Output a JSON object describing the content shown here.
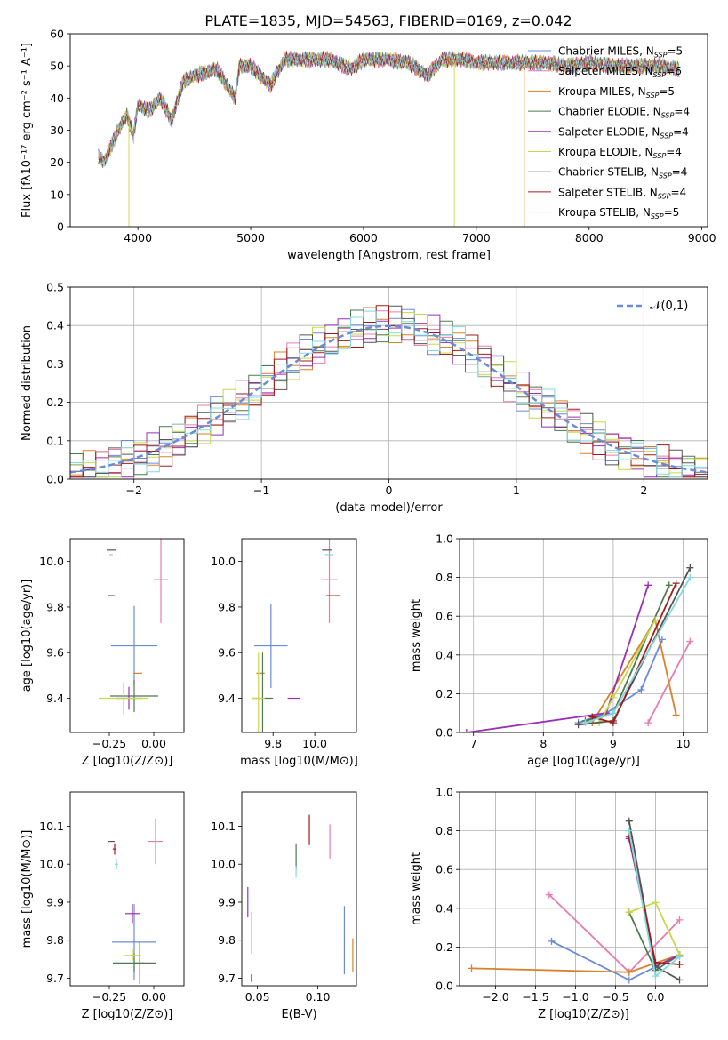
{
  "title": "PLATE=1835, MJD=54563, FIBERID=0169, z=0.042",
  "colors": [
    "#6b8ad9",
    "#e67cb2",
    "#d9822b",
    "#4e7a4e",
    "#9b2fb5",
    "#c9d84a",
    "#555555",
    "#a01c1c",
    "#84d8e0"
  ],
  "chart_data": [
    {
      "id": "spectrum",
      "type": "line",
      "title": "PLATE=1835, MJD=54563, FIBERID=0169, z=0.042",
      "xlabel": "wavelength [Angstrom, rest frame]",
      "ylabel": "Flux [fλ10⁻¹⁷ erg cm⁻² s⁻¹ A⁻¹]",
      "xlim": [
        3400,
        9050
      ],
      "ylim": [
        0,
        60
      ],
      "xticks": [
        "4000",
        "5000",
        "6000",
        "7000",
        "8000",
        "9000"
      ],
      "yticks": [
        "0",
        "10",
        "20",
        "30",
        "40",
        "50",
        "60"
      ],
      "legend": [
        "Chabrier MILES, N_SSP=5",
        "Salpeter MILES, N_SSP=6",
        "Kroupa MILES, N_SSP=5",
        "Chabrier ELODIE, N_SSP=4",
        "Salpeter ELODIE, N_SSP=4",
        "Kroupa ELODIE, N_SSP=4",
        "Chabrier STELIB, N_SSP=4",
        "Salpeter STELIB, N_SSP=4",
        "Kroupa STELIB, N_SSP=5"
      ],
      "legend_loc": "right",
      "series_x": [
        3650,
        3700,
        3800,
        3900,
        3960,
        4000,
        4100,
        4200,
        4300,
        4400,
        4500,
        4700,
        4860,
        4900,
        5000,
        5175,
        5300,
        5500,
        5700,
        5890,
        6000,
        6200,
        6400,
        6563,
        6700,
        6900,
        7000,
        7400,
        7600,
        7800,
        8000,
        8200,
        8400,
        8600,
        8800
      ],
      "series_y": [
        22,
        20,
        28,
        35,
        28,
        38,
        36,
        40,
        33,
        45,
        47,
        49,
        40,
        50,
        50,
        44,
        52,
        52,
        52,
        49,
        52,
        52,
        51,
        47,
        52,
        52,
        51,
        51,
        51,
        50,
        51,
        50,
        50,
        50,
        49
      ],
      "grid": false
    },
    {
      "id": "residuals",
      "type": "histogram",
      "xlabel": "(data-model)/error",
      "ylabel": "Normed distribution",
      "xlim": [
        -2.5,
        2.5
      ],
      "ylim": [
        0,
        0.5
      ],
      "xticks": [
        "−2",
        "−1",
        "0",
        "1",
        "2"
      ],
      "yticks": [
        "0.0",
        "0.1",
        "0.2",
        "0.3",
        "0.4",
        "0.5"
      ],
      "legend": [
        "𝒩(0,1)"
      ],
      "legend_loc": "top-right",
      "bin_width": 0.1,
      "grid": true
    },
    {
      "id": "z-age",
      "type": "scatter",
      "xlabel": "Z [log10(Z/Z⊙)]",
      "ylabel": "age [log10(age/yr)]",
      "xlim": [
        -0.47,
        0.17
      ],
      "ylim": [
        9.25,
        10.1
      ],
      "xticks": [
        "−0.25",
        "0.00"
      ],
      "yticks": [
        "9.4",
        "9.6",
        "9.8",
        "10.0"
      ],
      "grid": false
    },
    {
      "id": "mass-age",
      "type": "scatter",
      "xlabel": "mass [log10(M/M⊙)]",
      "ylabel": "",
      "xlim": [
        9.65,
        10.2
      ],
      "ylim": [
        9.25,
        10.1
      ],
      "xticks": [
        "9.8",
        "10.0"
      ],
      "yticks": [
        "9.4",
        "9.6",
        "9.8",
        "10.0"
      ],
      "grid": false
    },
    {
      "id": "age-weight",
      "type": "line",
      "xlabel": "age [log10(age/yr)]",
      "ylabel": "mass weight",
      "xlim": [
        6.8,
        10.35
      ],
      "ylim": [
        0,
        1
      ],
      "xticks": [
        "7",
        "8",
        "9",
        "10"
      ],
      "yticks": [
        "0.0",
        "0.2",
        "0.4",
        "0.6",
        "0.8",
        "1.0"
      ],
      "grid": true
    },
    {
      "id": "z-mass",
      "type": "scatter",
      "xlabel": "Z [log10(Z/Z⊙)]",
      "ylabel": "mass [log10(M/M⊙)]",
      "xlim": [
        -0.47,
        0.17
      ],
      "ylim": [
        9.68,
        10.19
      ],
      "xticks": [
        "−0.25",
        "0.00"
      ],
      "yticks": [
        "9.7",
        "9.8",
        "9.9",
        "10.0",
        "10.1"
      ],
      "grid": false
    },
    {
      "id": "ebv-mass",
      "type": "scatter",
      "xlabel": "E(B-V)",
      "ylabel": "",
      "xlim": [
        0.037,
        0.132
      ],
      "ylim": [
        9.68,
        10.19
      ],
      "xticks": [
        "0.05",
        "0.10"
      ],
      "yticks": [
        "9.7",
        "9.8",
        "9.9",
        "10.0",
        "10.1"
      ],
      "grid": false
    },
    {
      "id": "z-weight",
      "type": "line",
      "xlabel": "Z [log10(Z/Z⊙)]",
      "ylabel": "mass weight",
      "xlim": [
        -2.45,
        0.65
      ],
      "ylim": [
        0,
        1
      ],
      "xticks": [
        "−2.0",
        "−1.5",
        "−1.0",
        "−0.5",
        "0.0"
      ],
      "yticks": [
        "0.0",
        "0.2",
        "0.4",
        "0.6",
        "0.8",
        "1.0"
      ],
      "grid": true
    }
  ],
  "crosses": {
    "z_age": [
      [
        -0.11,
        9.63,
        0.26,
        0.35
      ],
      [
        0.04,
        9.92,
        0.08,
        0.38
      ],
      [
        -0.09,
        9.51,
        0.05,
        0.0
      ],
      [
        -0.11,
        9.41,
        0.27,
        0.14
      ],
      [
        -0.14,
        9.4,
        0.15,
        0.1
      ],
      [
        -0.17,
        9.4,
        0.28,
        0.14
      ],
      [
        -0.24,
        10.05,
        0.05,
        0.0
      ],
      [
        -0.24,
        9.85,
        0.04,
        0.0
      ],
      [
        -0.24,
        10.03,
        0.02,
        0.0
      ]
    ],
    "mass_age": [
      [
        9.79,
        9.63,
        0.16,
        0.37
      ],
      [
        10.07,
        9.92,
        0.08,
        0.38
      ],
      [
        9.74,
        9.51,
        0.04,
        0.0
      ],
      [
        9.75,
        9.4,
        0.1,
        0.4
      ],
      [
        9.9,
        9.4,
        0.06,
        0.0
      ],
      [
        9.73,
        9.4,
        0.06,
        0.4
      ],
      [
        10.06,
        10.05,
        0.05,
        0.0
      ],
      [
        10.09,
        9.85,
        0.07,
        0.0
      ],
      [
        10.07,
        10.03,
        0.04,
        0.0
      ]
    ],
    "z_mass": [
      [
        -0.11,
        9.795,
        0.25,
        0.2
      ],
      [
        0.01,
        10.06,
        0.08,
        0.12
      ],
      [
        -0.08,
        9.74,
        0.05,
        0.11
      ],
      [
        -0.11,
        9.74,
        0.24,
        0.05
      ],
      [
        -0.12,
        9.87,
        0.08,
        0.05
      ],
      [
        -0.12,
        9.76,
        0.1,
        0.03
      ],
      [
        -0.24,
        10.06,
        0.04,
        0.0
      ],
      [
        -0.22,
        10.04,
        0.02,
        0.03
      ],
      [
        -0.21,
        10.0,
        0.02,
        0.03
      ]
    ],
    "ebv_mass": [
      [
        0.122,
        9.8,
        0.0,
        0.18
      ],
      [
        0.11,
        10.06,
        0.0,
        0.09
      ],
      [
        0.129,
        9.76,
        0.0,
        0.09
      ],
      [
        0.082,
        10.02,
        0.0,
        0.07
      ],
      [
        0.042,
        9.9,
        0.0,
        0.08
      ],
      [
        0.045,
        9.82,
        0.0,
        0.11
      ],
      [
        0.045,
        9.7,
        0.0,
        0.02
      ],
      [
        0.093,
        10.09,
        0.0,
        0.08
      ],
      [
        0.082,
        9.98,
        0.0,
        0.03
      ]
    ]
  },
  "weights": {
    "age": [
      [
        [
          8.5,
          0.05
        ],
        [
          8.9,
          0.1
        ],
        [
          9.4,
          0.22
        ],
        [
          9.7,
          0.48
        ]
      ],
      [
        [
          9.5,
          0.05
        ],
        [
          10.1,
          0.47
        ]
      ],
      [
        [
          8.7,
          0.05
        ],
        [
          9.6,
          0.58
        ],
        [
          9.9,
          0.09
        ]
      ],
      [
        [
          8.6,
          0.06
        ],
        [
          9.0,
          0.1
        ],
        [
          9.8,
          0.76
        ]
      ],
      [
        [
          6.9,
          0.0
        ],
        [
          8.9,
          0.1
        ],
        [
          9.5,
          0.76
        ]
      ],
      [
        [
          8.8,
          0.05
        ],
        [
          9.0,
          0.18
        ],
        [
          9.6,
          0.58
        ]
      ],
      [
        [
          8.5,
          0.04
        ],
        [
          9.0,
          0.06
        ],
        [
          10.1,
          0.85
        ]
      ],
      [
        [
          8.7,
          0.08
        ],
        [
          9.0,
          0.05
        ],
        [
          9.9,
          0.77
        ]
      ],
      [
        [
          8.6,
          0.05
        ],
        [
          9.0,
          0.1
        ],
        [
          10.1,
          0.8
        ]
      ]
    ],
    "z": [
      [
        [
          -1.3,
          0.23
        ],
        [
          -0.33,
          0.03
        ],
        [
          0.3,
          0.16
        ]
      ],
      [
        [
          -1.33,
          0.47
        ],
        [
          -0.33,
          0.07
        ],
        [
          0.3,
          0.34
        ]
      ],
      [
        [
          -2.3,
          0.09
        ],
        [
          -0.33,
          0.07
        ],
        [
          0.3,
          0.16
        ]
      ],
      [
        [
          -0.33,
          0.38
        ],
        [
          0.0,
          0.08
        ],
        [
          0.3,
          0.16
        ]
      ],
      [
        [
          -0.33,
          0.76
        ],
        [
          0.0,
          0.1
        ],
        [
          0.3,
          0.16
        ]
      ],
      [
        [
          -0.33,
          0.38
        ],
        [
          0.0,
          0.43
        ],
        [
          0.3,
          0.16
        ]
      ],
      [
        [
          -0.33,
          0.85
        ],
        [
          0.0,
          0.1
        ],
        [
          0.3,
          0.03
        ]
      ],
      [
        [
          -0.33,
          0.77
        ],
        [
          0.0,
          0.12
        ],
        [
          0.3,
          0.11
        ]
      ],
      [
        [
          -0.33,
          0.8
        ],
        [
          0.0,
          0.05
        ],
        [
          0.3,
          0.15
        ]
      ]
    ]
  }
}
